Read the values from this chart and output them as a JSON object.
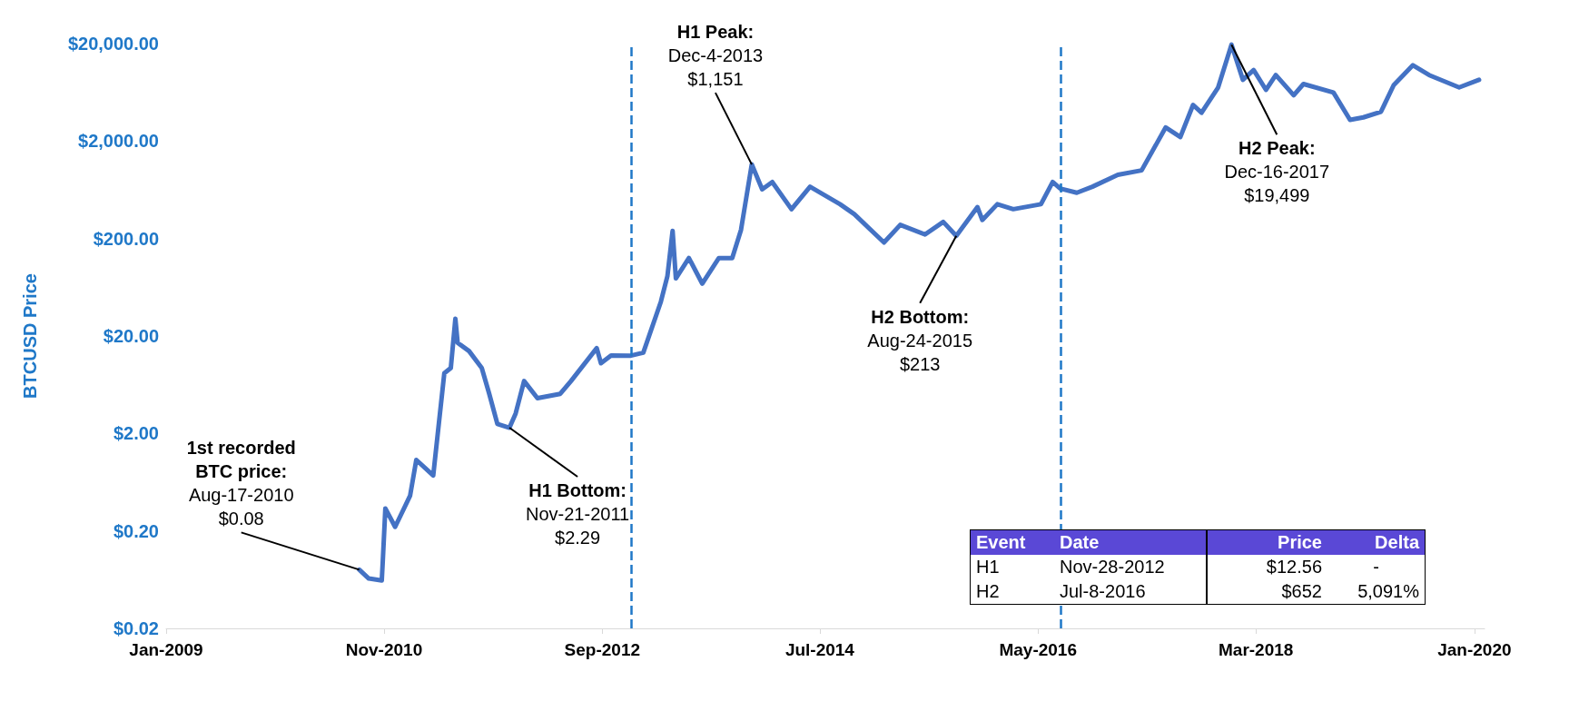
{
  "chart_data": {
    "type": "line",
    "ylabel": "BTCUSD Price",
    "log": "y",
    "grid": false,
    "marker": "none",
    "line_style": "solid",
    "xlim": [
      "2009-01-01",
      "2020-02-01"
    ],
    "xticks": [
      {
        "value": "2009-01-01",
        "label": "Jan-2009"
      },
      {
        "value": "2010-11-01",
        "label": "Nov-2010"
      },
      {
        "value": "2012-09-01",
        "label": "Sep-2012"
      },
      {
        "value": "2014-07-01",
        "label": "Jul-2014"
      },
      {
        "value": "2016-05-01",
        "label": "May-2016"
      },
      {
        "value": "2018-03-01",
        "label": "Mar-2018"
      },
      {
        "value": "2020-01-01",
        "label": "Jan-2020"
      }
    ],
    "ylim": [
      0.02,
      20000
    ],
    "yticks": [
      {
        "value": 0.02,
        "label": "$0.02"
      },
      {
        "value": 0.2,
        "label": "$0.20"
      },
      {
        "value": 2,
        "label": "$2.00"
      },
      {
        "value": 20,
        "label": "$20.00"
      },
      {
        "value": 200,
        "label": "$200.00"
      },
      {
        "value": 2000,
        "label": "$2,000.00"
      },
      {
        "value": 20000,
        "label": "$20,000.00"
      }
    ],
    "series": [
      {
        "color": "#4472c4",
        "x": [
          "2010-08-17",
          "2010-09-15",
          "2010-10-25",
          "2010-10-28",
          "2010-11-05",
          "2010-12-05",
          "2011-01-20",
          "2011-02-08",
          "2011-04-01",
          "2011-05-05",
          "2011-05-25",
          "2011-06-08",
          "2011-06-15",
          "2011-07-20",
          "2011-08-28",
          "2011-09-20",
          "2011-10-15",
          "2011-11-21",
          "2011-12-10",
          "2012-01-05",
          "2012-02-15",
          "2012-04-25",
          "2012-05-28",
          "2012-08-15",
          "2012-08-28",
          "2012-09-28",
          "2012-11-28",
          "2013-01-05",
          "2013-02-28",
          "2013-03-20",
          "2013-04-05",
          "2013-04-15",
          "2013-05-25",
          "2013-07-05",
          "2013-08-25",
          "2013-10-05",
          "2013-11-01",
          "2013-12-04",
          "2014-01-05",
          "2014-02-05",
          "2014-04-05",
          "2014-06-01",
          "2014-09-01",
          "2014-10-15",
          "2015-01-14",
          "2015-03-05",
          "2015-05-20",
          "2015-07-15",
          "2015-08-24",
          "2015-10-28",
          "2015-11-12",
          "2015-12-28",
          "2016-02-15",
          "2016-05-10",
          "2016-06-15",
          "2016-07-08",
          "2016-08-28",
          "2016-10-15",
          "2017-01-01",
          "2017-03-15",
          "2017-05-28",
          "2017-07-12",
          "2017-08-20",
          "2017-09-15",
          "2017-11-05",
          "2017-12-16",
          "2018-01-20",
          "2018-02-22",
          "2018-04-01",
          "2018-05-01",
          "2018-06-25",
          "2018-07-25",
          "2018-10-25",
          "2018-12-15",
          "2019-01-25",
          "2019-03-20",
          "2019-04-28",
          "2019-06-26",
          "2019-08-15",
          "2019-11-15",
          "2020-01-15"
        ],
        "values": [
          0.08,
          0.065,
          0.062,
          0.096,
          0.34,
          0.22,
          0.46,
          1.07,
          0.74,
          8.3,
          9.4,
          30,
          17,
          14,
          9.4,
          5.1,
          2.5,
          2.29,
          3.2,
          6.9,
          4.6,
          5.1,
          6.9,
          15,
          10.5,
          12.6,
          12.56,
          13.5,
          45,
          82,
          240,
          78,
          126,
          69,
          126,
          126,
          245,
          1151,
          640,
          760,
          400,
          680,
          450,
          355,
          182,
          276,
          220,
          296,
          213,
          420,
          310,
          450,
          400,
          450,
          760,
          652,
          590,
          680,
          900,
          1000,
          2760,
          2200,
          4700,
          3900,
          7100,
          19499,
          8500,
          10700,
          6700,
          9500,
          5900,
          7700,
          6300,
          3300,
          3500,
          4000,
          7500,
          12000,
          9500,
          7100,
          8500
        ]
      }
    ],
    "ref_lines": [
      {
        "axis": "x",
        "value": "2012-11-28",
        "color": "#1f78c8",
        "line_style": "dashed"
      },
      {
        "axis": "x",
        "value": "2016-07-09",
        "color": "#1f78c8",
        "line_style": "dashed"
      }
    ],
    "annotations": [
      {
        "text": "1st recorded\nBTC price:\nAug-17-2010\n$0.08",
        "x": "2010-08-17",
        "y": 0.08
      },
      {
        "text": "H1 Bottom:\nNov-21-2011\n$2.29",
        "x": "2011-11-21",
        "y": 2.29
      },
      {
        "text": "H1 Peak:\nDec-4-2013\n$1,151",
        "x": "2013-12-04",
        "y": 1151
      },
      {
        "text": "H2 Bottom:\nAug-24-2015\n$213",
        "x": "2015-08-24",
        "y": 213
      },
      {
        "text": "H2 Peak:\nDec-16-2017\n$19,499",
        "x": "2017-12-16",
        "y": 19499
      },
      "Event",
      "Date",
      "Price",
      "Delta",
      "H1",
      "Nov-28-2012",
      "$12.56",
      "-",
      "H2",
      "Jul-8-2016",
      "$652",
      "5,091%"
    ]
  }
}
